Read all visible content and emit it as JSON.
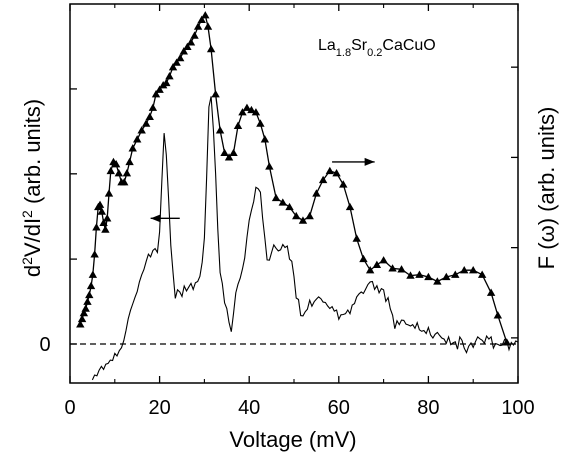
{
  "chart_data": {
    "type": "line",
    "annotation": {
      "parts": [
        {
          "text": "La",
          "sub": false
        },
        {
          "text": "1.8",
          "sub": true
        },
        {
          "text": "Sr",
          "sub": false
        },
        {
          "text": "0.2",
          "sub": true
        },
        {
          "text": "CaCuO",
          "sub": false
        }
      ]
    },
    "xlabel": "Voltage (mV)",
    "ylabel_left": {
      "base": "d",
      "sup1": "2",
      "mid": "V/dI",
      "sup2": "2",
      "tail": "  (arb. units)"
    },
    "ylabel_right": "F (ω) (arb. units)",
    "xlim": [
      0,
      100
    ],
    "xticks": [
      "0",
      "20",
      "40",
      "60",
      "80",
      "100"
    ],
    "yticks_left": [
      "0"
    ],
    "zero_line": {
      "y": 0,
      "style": "dashed"
    },
    "colors": {
      "line": "#000000",
      "background": "#ffffff"
    },
    "series": [
      {
        "marker": "triangle",
        "axis": "right",
        "x": [
          2.3,
          2.7,
          3.1,
          3.5,
          3.9,
          4.3,
          4.7,
          5.1,
          5.5,
          5.9,
          6.3,
          6.7,
          7.1,
          7.5,
          7.9,
          8.3,
          8.7,
          9.1,
          9.7,
          10.3,
          10.9,
          11.5,
          12.1,
          12.7,
          13.3,
          14.0,
          15.0,
          16.0,
          17.0,
          17.8,
          18.5,
          19.2,
          20.0,
          20.8,
          21.5,
          22.2,
          23.0,
          23.8,
          24.6,
          25.4,
          26.2,
          27.0,
          27.8,
          28.6,
          29.4,
          30.2,
          30.8,
          31.5,
          32.5,
          33.5,
          34.5,
          35.5,
          36.5,
          37.5,
          38.5,
          39.5,
          40.5,
          41.5,
          42.5,
          43.5,
          44.5,
          46.0,
          47.5,
          49.0,
          50.5,
          52.0,
          53.5,
          55.0,
          56.5,
          58.0,
          59.5,
          61.0,
          62.5,
          64.0,
          65.5,
          67.0,
          68.5,
          70.0,
          72.0,
          74.0,
          76.0,
          78.0,
          80.0,
          82.0,
          84.0,
          86.0,
          88.0,
          90.0,
          92.0,
          94.0,
          95.5,
          97.5
        ],
        "y": [
          0.13,
          0.142,
          0.155,
          0.165,
          0.18,
          0.195,
          0.215,
          0.24,
          0.285,
          0.345,
          0.39,
          0.395,
          0.38,
          0.355,
          0.34,
          0.365,
          0.42,
          0.47,
          0.49,
          0.485,
          0.465,
          0.445,
          0.445,
          0.465,
          0.49,
          0.52,
          0.54,
          0.56,
          0.575,
          0.59,
          0.61,
          0.64,
          0.65,
          0.66,
          0.665,
          0.68,
          0.7,
          0.71,
          0.72,
          0.735,
          0.745,
          0.755,
          0.77,
          0.79,
          0.805,
          0.815,
          0.79,
          0.74,
          0.64,
          0.56,
          0.51,
          0.5,
          0.51,
          0.57,
          0.6,
          0.61,
          0.605,
          0.6,
          0.575,
          0.54,
          0.48,
          0.41,
          0.4,
          0.39,
          0.37,
          0.36,
          0.37,
          0.42,
          0.45,
          0.47,
          0.465,
          0.44,
          0.39,
          0.32,
          0.275,
          0.25,
          0.262,
          0.272,
          0.254,
          0.252,
          0.238,
          0.24,
          0.235,
          0.225,
          0.235,
          0.24,
          0.25,
          0.25,
          0.24,
          0.2,
          0.15,
          0.09
        ]
      },
      {
        "marker": "none",
        "axis": "left",
        "x": [
          5.0,
          5.5,
          6.0,
          6.5,
          7.0,
          7.5,
          8.0,
          8.5,
          9.0,
          9.5,
          10.0,
          10.5,
          11.0,
          11.5,
          12.0,
          12.5,
          13.0,
          13.5,
          14.0,
          14.5,
          15.0,
          15.5,
          16.0,
          16.5,
          17.0,
          17.5,
          18.0,
          18.5,
          19.0,
          19.5,
          20.0,
          20.5,
          21.0,
          21.5,
          22.0,
          22.5,
          23.0,
          23.5,
          24.0,
          24.5,
          25.0,
          25.5,
          26.0,
          26.5,
          27.0,
          27.5,
          28.0,
          28.5,
          29.0,
          29.5,
          30.0,
          30.5,
          31.0,
          31.5,
          32.0,
          32.5,
          33.0,
          33.5,
          34.0,
          34.5,
          35.0,
          35.5,
          36.0,
          36.5,
          37.0,
          37.5,
          38.0,
          38.5,
          39.0,
          39.5,
          40.0,
          40.5,
          41.0,
          41.5,
          42.0,
          42.5,
          43.0,
          43.5,
          44.0,
          44.5,
          45.0,
          45.5,
          46.0,
          46.5,
          47.0,
          47.5,
          48.0,
          48.5,
          49.0,
          49.5,
          50.0,
          50.5,
          51.0,
          51.5,
          52.0,
          52.5,
          53.0,
          53.5,
          54.0,
          54.5,
          55.0,
          55.5,
          56.0,
          56.5,
          57.0,
          57.5,
          58.0,
          58.5,
          59.0,
          59.5,
          60.0,
          60.5,
          61.0,
          61.5,
          62.0,
          62.5,
          63.0,
          63.5,
          64.0,
          64.5,
          65.0,
          65.5,
          66.0,
          66.5,
          67.0,
          67.5,
          68.0,
          68.5,
          69.0,
          69.5,
          70.0,
          70.5,
          71.0,
          71.5,
          72.0,
          72.5,
          73.0,
          73.5,
          74.0,
          74.5,
          75.0,
          75.5,
          76.0,
          76.5,
          77.0,
          77.5,
          78.0,
          78.5,
          79.0,
          79.5,
          80.0,
          80.5,
          81.0,
          81.5,
          82.0,
          82.5,
          83.0,
          83.5,
          84.0,
          84.5,
          85.0,
          85.5,
          86.0,
          86.5,
          87.0,
          87.5,
          88.0,
          88.5,
          89.0,
          89.5,
          90.0,
          90.5,
          91.0,
          91.5,
          92.0,
          92.5,
          93.0,
          93.5,
          94.0,
          94.5,
          95.0,
          95.5,
          96.0,
          96.5,
          97.0,
          97.5,
          98.0,
          98.5,
          99.0,
          99.5,
          100.0
        ],
        "y": [
          -0.096,
          -0.083,
          -0.085,
          -0.07,
          -0.06,
          -0.068,
          -0.054,
          -0.052,
          -0.043,
          -0.044,
          -0.025,
          -0.032,
          -0.018,
          -0.01,
          0.009,
          0.036,
          0.067,
          0.09,
          0.107,
          0.125,
          0.14,
          0.166,
          0.185,
          0.199,
          0.221,
          0.24,
          0.233,
          0.25,
          0.255,
          0.245,
          0.3,
          0.433,
          0.564,
          0.506,
          0.389,
          0.264,
          0.192,
          0.122,
          0.145,
          0.139,
          0.127,
          0.155,
          0.142,
          0.152,
          0.162,
          0.146,
          0.164,
          0.167,
          0.181,
          0.219,
          0.284,
          0.443,
          0.634,
          0.662,
          0.573,
          0.456,
          0.307,
          0.191,
          0.162,
          0.11,
          0.095,
          0.058,
          0.033,
          0.081,
          0.137,
          0.16,
          0.176,
          0.201,
          0.23,
          0.286,
          0.331,
          0.357,
          0.381,
          0.419,
          0.415,
          0.406,
          0.337,
          0.282,
          0.225,
          0.224,
          0.245,
          0.265,
          0.256,
          0.249,
          0.252,
          0.266,
          0.258,
          0.262,
          0.227,
          0.221,
          0.18,
          0.123,
          0.119,
          0.076,
          0.075,
          0.086,
          0.093,
          0.117,
          0.101,
          0.113,
          0.12,
          0.126,
          0.121,
          0.112,
          0.111,
          0.102,
          0.095,
          0.1,
          0.088,
          0.091,
          0.066,
          0.078,
          0.079,
          0.081,
          0.091,
          0.081,
          0.104,
          0.108,
          0.126,
          0.134,
          0.139,
          0.135,
          0.147,
          0.159,
          0.166,
          0.167,
          0.146,
          0.156,
          0.137,
          0.148,
          0.145,
          0.114,
          0.124,
          0.094,
          0.077,
          0.041,
          0.062,
          0.052,
          0.064,
          0.063,
          0.053,
          0.051,
          0.048,
          0.052,
          0.042,
          0.057,
          0.038,
          0.034,
          0.036,
          0.028,
          0.044,
          0.024,
          0.016,
          0.026,
          0.031,
          0.023,
          0.016,
          0.013,
          0.002,
          0.019,
          -0.002,
          0.003,
          0.006,
          -0.014,
          0.019,
          0.01,
          -0.011,
          -0.023,
          -0.006,
          0.003,
          -0.009,
          0.006,
          0.019,
          0.014,
          0.01,
          0.002,
          0.021,
          0.013,
          0.019,
          -0.011,
          0.001,
          -0.001,
          -0.004,
          -0.003,
          0.012,
          0.008,
          -0.015,
          0.004,
          -0.003,
          0.008,
          0.005
        ]
      }
    ],
    "arrows": [
      {
        "target": "left",
        "tail_x": 24.5,
        "head_x": 18.0,
        "y": 0.336
      },
      {
        "target": "right",
        "tail_x": 58.5,
        "head_x": 68.0,
        "y": 0.49
      }
    ]
  }
}
